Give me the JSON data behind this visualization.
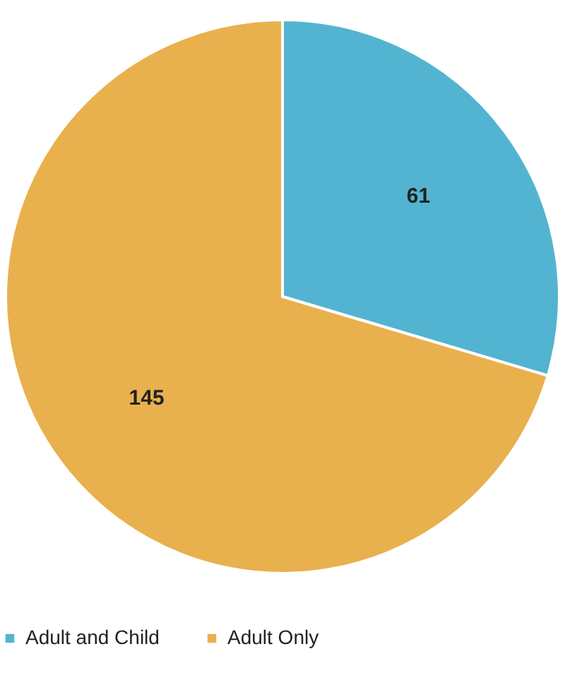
{
  "chart_data": {
    "type": "pie",
    "categories": [
      "Adult and Child",
      "Adult Only"
    ],
    "values": [
      61,
      145
    ],
    "colors": [
      "#52b4d0",
      "#e9b04e"
    ],
    "data_labels": true,
    "legend": "bottom"
  }
}
